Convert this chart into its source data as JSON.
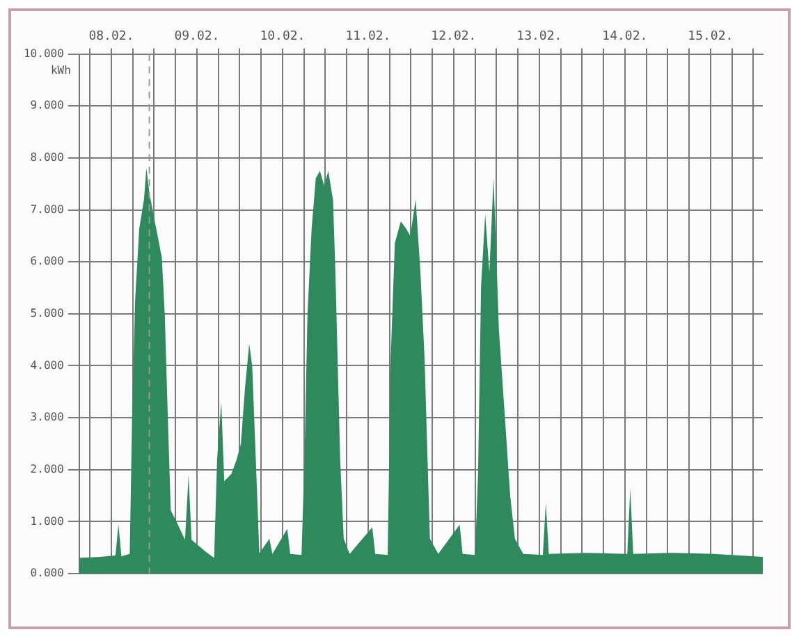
{
  "chart_data": {
    "type": "area",
    "ylabel": "kWh",
    "grid": true,
    "marker": "none",
    "xlim": [
      "--02-07T15:00",
      "--02-15T14:40"
    ],
    "xticks": [
      {
        "value": "--02-07T18:00",
        "label": null
      },
      {
        "value": "--02-08",
        "label": "08.02."
      },
      {
        "value": "--02-08T06:00",
        "label": null
      },
      {
        "value": "--02-08T12:00",
        "label": null
      },
      {
        "value": "--02-08T18:00",
        "label": null
      },
      {
        "value": "--02-09",
        "label": "09.02."
      },
      {
        "value": "--02-09T06:00",
        "label": null
      },
      {
        "value": "--02-09T12:00",
        "label": null
      },
      {
        "value": "--02-09T18:00",
        "label": null
      },
      {
        "value": "--02-10",
        "label": "10.02."
      },
      {
        "value": "--02-10T06:00",
        "label": null
      },
      {
        "value": "--02-10T12:00",
        "label": null
      },
      {
        "value": "--02-10T18:00",
        "label": null
      },
      {
        "value": "--02-11",
        "label": "11.02."
      },
      {
        "value": "--02-11T06:00",
        "label": null
      },
      {
        "value": "--02-11T12:00",
        "label": null
      },
      {
        "value": "--02-11T18:00",
        "label": null
      },
      {
        "value": "--02-12",
        "label": "12.02."
      },
      {
        "value": "--02-12T06:00",
        "label": null
      },
      {
        "value": "--02-12T12:00",
        "label": null
      },
      {
        "value": "--02-12T18:00",
        "label": null
      },
      {
        "value": "--02-13",
        "label": "13.02."
      },
      {
        "value": "--02-13T06:00",
        "label": null
      },
      {
        "value": "--02-13T12:00",
        "label": null
      },
      {
        "value": "--02-13T18:00",
        "label": null
      },
      {
        "value": "--02-14",
        "label": "14.02."
      },
      {
        "value": "--02-14T06:00",
        "label": null
      },
      {
        "value": "--02-14T12:00",
        "label": null
      },
      {
        "value": "--02-14T18:00",
        "label": null
      },
      {
        "value": "--02-15",
        "label": "15.02."
      },
      {
        "value": "--02-15T06:00",
        "label": null
      },
      {
        "value": "--02-15T12:00",
        "label": null
      }
    ],
    "ylim": [
      0,
      10
    ],
    "yticks": [
      {
        "value": 0,
        "label": "0.000"
      },
      {
        "value": 1,
        "label": "1.000"
      },
      {
        "value": 2,
        "label": "2.000"
      },
      {
        "value": 3,
        "label": "3.000"
      },
      {
        "value": 4,
        "label": "4.000"
      },
      {
        "value": 5,
        "label": "5.000"
      },
      {
        "value": 6,
        "label": "6.000"
      },
      {
        "value": 7,
        "label": "7.000"
      },
      {
        "value": 8,
        "label": "8.000"
      },
      {
        "value": 9,
        "label": "9.000"
      },
      {
        "value": 10,
        "label": "10.000"
      }
    ],
    "ref_lines": [
      {
        "axis": "x",
        "value": "--02-08T10:40",
        "line_style": "dashed",
        "color": "#999999"
      }
    ],
    "x": [
      "--02-07T15:00",
      "--02-07T20:50",
      "--02-08T01:10",
      "--02-08T02:00",
      "--02-08T02:50",
      "--02-08T05:10",
      "--02-08T05:50",
      "--02-08T06:40",
      "--02-08T07:50",
      "--02-08T09:10",
      "--02-08T09:50",
      "--02-08T10:40",
      "--02-08T11:50",
      "--02-08T13:00",
      "--02-08T14:10",
      "--02-08T15:00",
      "--02-08T15:50",
      "--02-08T16:40",
      "--02-08T18:40",
      "--02-08T20:40",
      "--02-08T21:40",
      "--02-08T22:30",
      "--02-09T02:30",
      "--02-09T04:50",
      "--02-09T05:40",
      "--02-09T06:50",
      "--02-09T07:40",
      "--02-09T09:40",
      "--02-09T11:10",
      "--02-09T12:20",
      "--02-09T13:30",
      "--02-09T14:40",
      "--02-09T15:30",
      "--02-09T16:40",
      "--02-09T17:30",
      "--02-09T20:20",
      "--02-09T21:10",
      "--02-10T01:20",
      "--02-10T02:10",
      "--02-10T05:20",
      "--02-10T06:10",
      "--02-10T07:00",
      "--02-10T08:10",
      "--02-10T09:20",
      "--02-10T10:30",
      "--02-10T11:40",
      "--02-10T12:50",
      "--02-10T14:10",
      "--02-10T14:50",
      "--02-10T16:10",
      "--02-10T17:10",
      "--02-10T18:50",
      "--02-11T01:10",
      "--02-11T02:00",
      "--02-11T05:30",
      "--02-11T06:20",
      "--02-11T07:30",
      "--02-11T09:10",
      "--02-11T10:40",
      "--02-11T11:50",
      "--02-11T13:20",
      "--02-11T14:40",
      "--02-11T15:50",
      "--02-11T16:40",
      "--02-11T17:20",
      "--02-11T19:40",
      "--02-12T01:40",
      "--02-12T02:30",
      "--02-12T06:00",
      "--02-12T06:50",
      "--02-12T07:40",
      "--02-12T08:50",
      "--02-12T10:00",
      "--02-12T11:10",
      "--02-12T11:50",
      "--02-12T12:40",
      "--02-12T14:20",
      "--02-12T15:50",
      "--02-12T17:10",
      "--02-12T19:30",
      "--02-13T01:00",
      "--02-13T01:50",
      "--02-13T02:40",
      "--02-13T13:10",
      "--02-14T00:40",
      "--02-14T01:30",
      "--02-14T02:20",
      "--02-14T13:00",
      "--02-15T00:50",
      "--02-15T14:40"
    ],
    "series": [
      {
        "color": "#2e8a5c",
        "values": [
          0.3,
          0.32,
          0.35,
          0.95,
          0.33,
          0.38,
          3.0,
          5.25,
          6.64,
          7.2,
          7.8,
          7.33,
          6.9,
          6.5,
          6.08,
          4.97,
          3.03,
          1.22,
          0.94,
          0.65,
          1.9,
          0.65,
          0.42,
          0.3,
          2.2,
          3.3,
          1.78,
          1.92,
          2.2,
          2.5,
          3.58,
          4.42,
          4.0,
          1.92,
          0.39,
          0.67,
          0.38,
          0.86,
          0.38,
          0.36,
          2.2,
          4.97,
          6.64,
          7.61,
          7.75,
          7.47,
          7.75,
          7.19,
          5.8,
          2.2,
          0.67,
          0.38,
          0.89,
          0.38,
          0.36,
          4.14,
          6.36,
          6.78,
          6.64,
          6.5,
          7.2,
          5.8,
          4.14,
          2.2,
          0.67,
          0.38,
          0.94,
          0.38,
          0.36,
          1.92,
          5.53,
          6.92,
          5.8,
          7.61,
          6.36,
          4.7,
          3.03,
          1.5,
          0.67,
          0.38,
          0.36,
          1.36,
          0.38,
          0.4,
          0.38,
          1.64,
          0.38,
          0.4,
          0.38,
          0.32
        ]
      }
    ]
  }
}
